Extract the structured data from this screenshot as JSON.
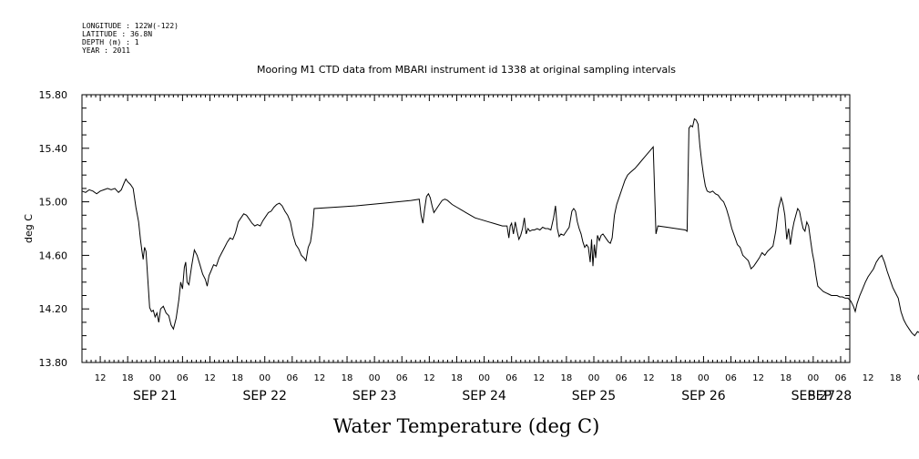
{
  "metadata": [
    "LONGITUDE : 122W(-122)",
    "LATITUDE : 36.8N",
    "DEPTH (m) : 1",
    "YEAR : 2011"
  ],
  "chart_data": {
    "type": "line",
    "title": "Mooring M1 CTD data from MBARI instrument id 1338 at original sampling intervals",
    "xlabel": "Water Temperature (deg C)",
    "ylabel": "deg C",
    "ylim": [
      13.8,
      15.8
    ],
    "yticks": [
      "13.80",
      "14.20",
      "14.60",
      "15.00",
      "15.40",
      "15.80"
    ],
    "xlim_hours_label": "SEP 21 08:00 to SEP 28 08:00",
    "hour_ticks": [
      "12",
      "18",
      "00",
      "06",
      "12",
      "18",
      "00",
      "06",
      "12",
      "18",
      "00",
      "06",
      "12",
      "18",
      "00",
      "06",
      "12",
      "18",
      "00",
      "06",
      "12",
      "18",
      "00",
      "06",
      "12",
      "18",
      "00",
      "06",
      "12",
      "18",
      "00",
      "06"
    ],
    "day_labels": [
      "SEP 21",
      "SEP 22",
      "SEP 23",
      "SEP 24",
      "SEP 25",
      "SEP 26",
      "SEP 27",
      "SEP 28"
    ],
    "series": [
      {
        "values": [
          [
            0.0,
            15.08
          ],
          [
            0.8,
            15.07
          ],
          [
            1.6,
            15.09
          ],
          [
            2.4,
            15.08
          ],
          [
            3.2,
            15.06
          ],
          [
            4.0,
            15.08
          ],
          [
            4.8,
            15.09
          ],
          [
            5.6,
            15.1
          ],
          [
            6.4,
            15.09
          ],
          [
            7.2,
            15.1
          ],
          [
            8.0,
            15.07
          ],
          [
            8.6,
            15.09
          ],
          [
            9.2,
            15.14
          ],
          [
            9.6,
            15.17
          ],
          [
            10.0,
            15.15
          ],
          [
            10.6,
            15.13
          ],
          [
            11.2,
            15.1
          ],
          [
            11.8,
            14.96
          ],
          [
            12.4,
            14.85
          ],
          [
            12.8,
            14.72
          ],
          [
            13.1,
            14.64
          ],
          [
            13.4,
            14.57
          ],
          [
            13.7,
            14.66
          ],
          [
            14.0,
            14.63
          ],
          [
            14.4,
            14.42
          ],
          [
            14.8,
            14.21
          ],
          [
            15.2,
            14.18
          ],
          [
            15.6,
            14.19
          ],
          [
            16.0,
            14.14
          ],
          [
            16.4,
            14.17
          ],
          [
            16.8,
            14.1
          ],
          [
            17.2,
            14.2
          ],
          [
            17.8,
            14.22
          ],
          [
            18.4,
            14.17
          ],
          [
            19.0,
            14.15
          ],
          [
            19.5,
            14.08
          ],
          [
            20.0,
            14.05
          ],
          [
            20.6,
            14.13
          ],
          [
            21.2,
            14.27
          ],
          [
            21.6,
            14.4
          ],
          [
            22.0,
            14.35
          ],
          [
            22.4,
            14.51
          ],
          [
            22.7,
            14.55
          ],
          [
            23.0,
            14.4
          ],
          [
            23.4,
            14.38
          ],
          [
            24.0,
            14.52
          ],
          [
            24.6,
            14.64
          ],
          [
            25.2,
            14.6
          ],
          [
            25.8,
            14.53
          ],
          [
            26.4,
            14.46
          ],
          [
            27.0,
            14.42
          ],
          [
            27.4,
            14.37
          ],
          [
            27.8,
            14.45
          ],
          [
            28.2,
            14.48
          ],
          [
            28.8,
            14.53
          ],
          [
            29.4,
            14.52
          ],
          [
            30.0,
            14.58
          ],
          [
            30.6,
            14.62
          ],
          [
            31.2,
            14.66
          ],
          [
            31.8,
            14.7
          ],
          [
            32.4,
            14.73
          ],
          [
            33.0,
            14.72
          ],
          [
            33.6,
            14.77
          ],
          [
            34.2,
            14.85
          ],
          [
            34.8,
            14.88
          ],
          [
            35.4,
            14.91
          ],
          [
            36.0,
            14.9
          ],
          [
            36.6,
            14.87
          ],
          [
            37.2,
            14.84
          ],
          [
            37.8,
            14.82
          ],
          [
            38.4,
            14.83
          ],
          [
            39.0,
            14.82
          ],
          [
            39.6,
            14.86
          ],
          [
            40.2,
            14.89
          ],
          [
            40.8,
            14.92
          ],
          [
            41.4,
            14.93
          ],
          [
            42.0,
            14.96
          ],
          [
            42.6,
            14.98
          ],
          [
            43.2,
            14.99
          ],
          [
            43.8,
            14.97
          ],
          [
            44.4,
            14.93
          ],
          [
            45.0,
            14.9
          ],
          [
            45.6,
            14.85
          ],
          [
            46.2,
            14.75
          ],
          [
            46.8,
            14.68
          ],
          [
            47.4,
            14.65
          ],
          [
            48.0,
            14.6
          ],
          [
            48.6,
            14.58
          ],
          [
            49.0,
            14.56
          ],
          [
            49.5,
            14.66
          ],
          [
            50.0,
            14.7
          ],
          [
            50.5,
            14.82
          ],
          [
            50.8,
            14.95
          ],
          [
            60.0,
            14.97
          ],
          [
            66.0,
            14.99
          ],
          [
            72.0,
            15.01
          ],
          [
            73.8,
            15.02
          ],
          [
            74.2,
            14.9
          ],
          [
            74.6,
            14.84
          ],
          [
            75.0,
            14.95
          ],
          [
            75.4,
            15.04
          ],
          [
            75.8,
            15.06
          ],
          [
            76.2,
            15.03
          ],
          [
            76.6,
            14.97
          ],
          [
            77.0,
            14.92
          ],
          [
            77.6,
            14.95
          ],
          [
            78.2,
            14.98
          ],
          [
            78.8,
            15.01
          ],
          [
            79.4,
            15.02
          ],
          [
            80.0,
            15.01
          ],
          [
            81.0,
            14.98
          ],
          [
            82.0,
            14.96
          ],
          [
            83.0,
            14.94
          ],
          [
            84.0,
            14.92
          ],
          [
            85.0,
            14.9
          ],
          [
            86.0,
            14.88
          ],
          [
            87.0,
            14.87
          ],
          [
            88.0,
            14.86
          ],
          [
            89.0,
            14.85
          ],
          [
            90.0,
            14.84
          ],
          [
            91.0,
            14.83
          ],
          [
            92.0,
            14.82
          ],
          [
            93.0,
            14.82
          ],
          [
            93.4,
            14.73
          ],
          [
            93.7,
            14.82
          ],
          [
            94.0,
            14.84
          ],
          [
            94.4,
            14.76
          ],
          [
            94.8,
            14.85
          ],
          [
            95.2,
            14.78
          ],
          [
            95.6,
            14.72
          ],
          [
            96.0,
            14.75
          ],
          [
            96.4,
            14.8
          ],
          [
            96.8,
            14.88
          ],
          [
            97.2,
            14.76
          ],
          [
            97.6,
            14.8
          ],
          [
            98.0,
            14.78
          ],
          [
            98.5,
            14.79
          ],
          [
            99.0,
            14.79
          ],
          [
            99.6,
            14.8
          ],
          [
            100.2,
            14.79
          ],
          [
            100.8,
            14.81
          ],
          [
            101.4,
            14.8
          ],
          [
            102.0,
            14.8
          ],
          [
            102.6,
            14.79
          ],
          [
            103.2,
            14.88
          ],
          [
            103.6,
            14.97
          ],
          [
            104.0,
            14.8
          ],
          [
            104.4,
            14.74
          ],
          [
            104.8,
            14.76
          ],
          [
            105.4,
            14.75
          ],
          [
            106.0,
            14.78
          ],
          [
            106.6,
            14.81
          ],
          [
            107.2,
            14.93
          ],
          [
            107.6,
            14.95
          ],
          [
            108.0,
            14.93
          ],
          [
            108.4,
            14.85
          ],
          [
            108.8,
            14.8
          ],
          [
            109.2,
            14.76
          ],
          [
            109.6,
            14.7
          ],
          [
            110.0,
            14.66
          ],
          [
            110.4,
            14.68
          ],
          [
            110.8,
            14.66
          ],
          [
            111.2,
            14.55
          ],
          [
            111.5,
            14.72
          ],
          [
            111.8,
            14.52
          ],
          [
            112.1,
            14.68
          ],
          [
            112.4,
            14.58
          ],
          [
            112.8,
            14.75
          ],
          [
            113.2,
            14.71
          ],
          [
            113.6,
            14.75
          ],
          [
            114.0,
            14.76
          ],
          [
            114.4,
            14.74
          ],
          [
            114.8,
            14.72
          ],
          [
            115.2,
            14.7
          ],
          [
            115.6,
            14.69
          ],
          [
            116.0,
            14.73
          ],
          [
            116.5,
            14.9
          ],
          [
            117.0,
            14.98
          ],
          [
            117.6,
            15.04
          ],
          [
            118.2,
            15.1
          ],
          [
            118.8,
            15.16
          ],
          [
            119.4,
            15.2
          ],
          [
            120.0,
            15.22
          ],
          [
            121.0,
            15.25
          ],
          [
            122.0,
            15.29
          ],
          [
            123.0,
            15.33
          ],
          [
            124.0,
            15.37
          ],
          [
            125.0,
            15.41
          ],
          [
            125.6,
            14.76
          ],
          [
            126.0,
            14.82
          ],
          [
            128.0,
            14.81
          ],
          [
            130.0,
            14.8
          ],
          [
            132.0,
            14.79
          ],
          [
            132.4,
            14.78
          ],
          [
            132.8,
            15.55
          ],
          [
            133.2,
            15.57
          ],
          [
            133.6,
            15.56
          ],
          [
            134.0,
            15.62
          ],
          [
            134.4,
            15.61
          ],
          [
            134.8,
            15.58
          ],
          [
            135.2,
            15.42
          ],
          [
            135.6,
            15.3
          ],
          [
            136.0,
            15.2
          ],
          [
            136.4,
            15.12
          ],
          [
            136.8,
            15.08
          ],
          [
            137.4,
            15.07
          ],
          [
            138.0,
            15.08
          ],
          [
            138.6,
            15.06
          ],
          [
            139.2,
            15.05
          ],
          [
            139.8,
            15.02
          ],
          [
            140.4,
            15.0
          ],
          [
            141.0,
            14.95
          ],
          [
            141.6,
            14.88
          ],
          [
            142.2,
            14.8
          ],
          [
            142.8,
            14.74
          ],
          [
            143.4,
            14.68
          ],
          [
            144.0,
            14.66
          ],
          [
            144.6,
            14.6
          ],
          [
            145.2,
            14.58
          ],
          [
            145.8,
            14.56
          ],
          [
            146.4,
            14.5
          ],
          [
            147.0,
            14.52
          ],
          [
            147.6,
            14.55
          ],
          [
            148.2,
            14.58
          ],
          [
            148.8,
            14.62
          ],
          [
            149.4,
            14.6
          ],
          [
            150.0,
            14.63
          ],
          [
            150.6,
            14.65
          ],
          [
            151.2,
            14.67
          ],
          [
            151.8,
            14.78
          ],
          [
            152.4,
            14.95
          ],
          [
            153.0,
            15.03
          ],
          [
            153.4,
            14.98
          ],
          [
            153.8,
            14.9
          ],
          [
            154.2,
            14.72
          ],
          [
            154.6,
            14.8
          ],
          [
            155.0,
            14.68
          ],
          [
            155.4,
            14.78
          ],
          [
            155.8,
            14.85
          ],
          [
            156.2,
            14.9
          ],
          [
            156.6,
            14.95
          ],
          [
            157.0,
            14.93
          ],
          [
            157.4,
            14.86
          ],
          [
            157.8,
            14.8
          ],
          [
            158.2,
            14.78
          ],
          [
            158.6,
            14.85
          ],
          [
            159.0,
            14.82
          ],
          [
            159.4,
            14.72
          ],
          [
            159.8,
            14.62
          ],
          [
            160.2,
            14.55
          ],
          [
            160.6,
            14.45
          ],
          [
            161.0,
            14.37
          ],
          [
            161.6,
            14.35
          ],
          [
            162.2,
            14.33
          ],
          [
            162.8,
            14.32
          ],
          [
            163.4,
            14.31
          ],
          [
            164.0,
            14.3
          ],
          [
            164.6,
            14.3
          ],
          [
            165.2,
            14.3
          ],
          [
            165.8,
            14.29
          ],
          [
            166.4,
            14.29
          ],
          [
            167.0,
            14.28
          ],
          [
            167.6,
            14.28
          ],
          [
            168.2,
            14.26
          ],
          [
            168.8,
            14.22
          ],
          [
            169.2,
            14.18
          ],
          [
            169.6,
            14.24
          ],
          [
            170.2,
            14.3
          ],
          [
            170.8,
            14.35
          ],
          [
            171.4,
            14.4
          ],
          [
            172.0,
            14.44
          ],
          [
            172.6,
            14.47
          ],
          [
            173.2,
            14.5
          ],
          [
            173.8,
            14.55
          ],
          [
            174.4,
            14.58
          ],
          [
            175.0,
            14.6
          ],
          [
            175.6,
            14.55
          ],
          [
            176.2,
            14.48
          ],
          [
            176.8,
            14.42
          ],
          [
            177.4,
            14.36
          ],
          [
            178.0,
            14.32
          ],
          [
            178.6,
            14.28
          ],
          [
            179.2,
            14.18
          ],
          [
            179.8,
            14.12
          ],
          [
            180.4,
            14.08
          ],
          [
            181.0,
            14.05
          ],
          [
            181.6,
            14.02
          ],
          [
            182.2,
            14.0
          ],
          [
            182.8,
            14.03
          ],
          [
            183.4,
            14.02
          ],
          [
            184.0,
            14.06
          ],
          [
            184.6,
            14.15
          ],
          [
            185.2,
            14.27
          ]
        ]
      }
    ]
  }
}
